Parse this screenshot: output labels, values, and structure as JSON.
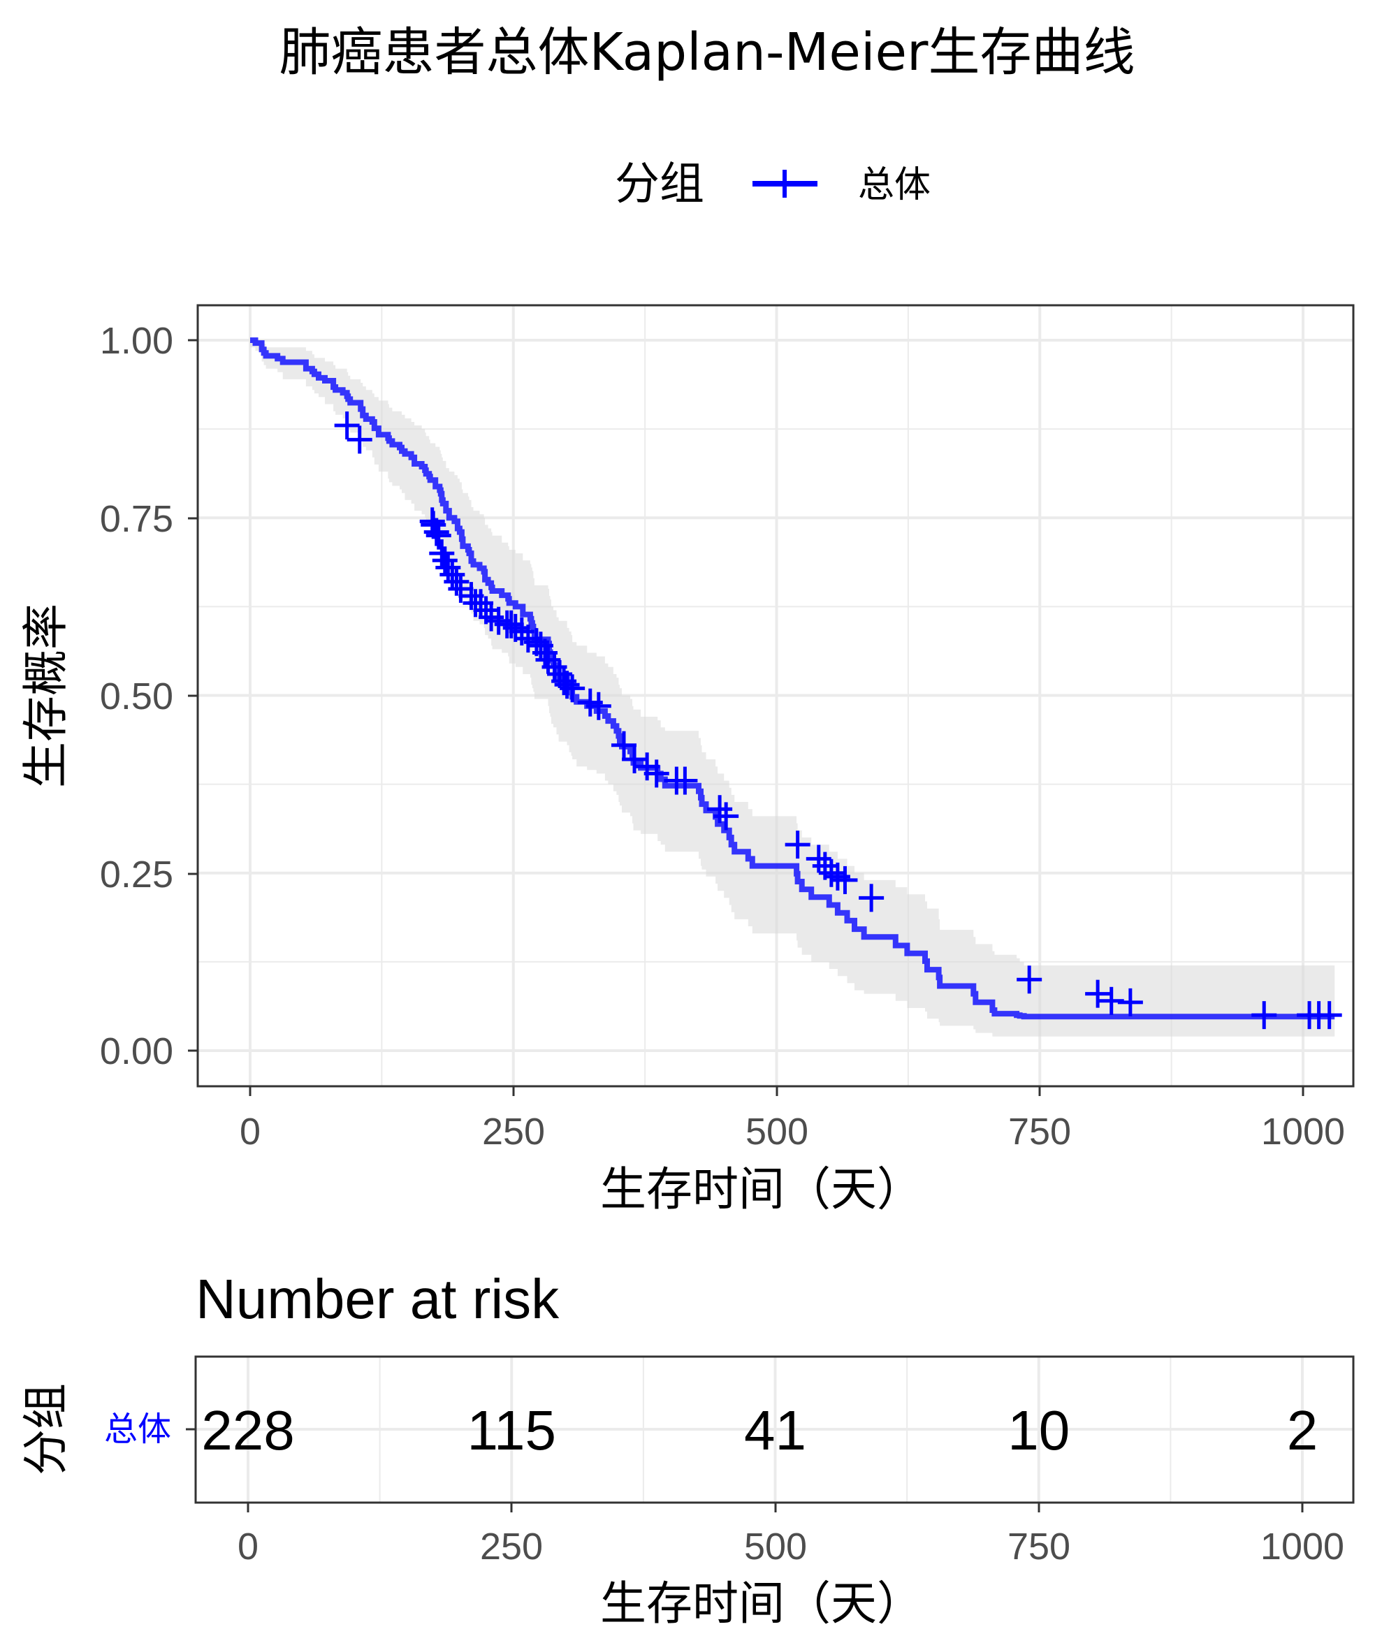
{
  "chart_data": [
    {
      "type": "line",
      "subtype": "kaplan-meier",
      "title": "肺癌患者总体Kaplan-Meier生存曲线",
      "legend": {
        "title": "分组",
        "position": "top",
        "entries": [
          "总体"
        ]
      },
      "xlabel": "生存时间（天）",
      "ylabel": "生存概率",
      "xlim": [
        -50,
        1045
      ],
      "ylim": [
        -0.05,
        1.05
      ],
      "xticks": [
        "0",
        "250",
        "500",
        "750",
        "1000"
      ],
      "yticks": [
        "0.00",
        "0.25",
        "0.50",
        "0.75",
        "1.00"
      ],
      "grid": true,
      "confidence_band": true,
      "series": [
        {
          "name": "总体",
          "color": "#0000ff",
          "x": [
            0,
            5,
            11,
            13,
            15,
            26,
            31,
            53,
            59,
            61,
            65,
            71,
            79,
            81,
            88,
            92,
            93,
            95,
            105,
            107,
            110,
            116,
            118,
            122,
            131,
            132,
            135,
            142,
            144,
            147,
            153,
            156,
            163,
            166,
            167,
            170,
            171,
            176,
            180,
            181,
            182,
            183,
            186,
            189,
            194,
            197,
            199,
            201,
            202,
            207,
            208,
            210,
            212,
            218,
            222,
            223,
            226,
            229,
            230,
            239,
            245,
            246,
            252,
            259,
            266,
            267,
            268,
            269,
            270,
            283,
            284,
            285,
            286,
            288,
            291,
            293,
            301,
            303,
            305,
            306,
            310,
            320,
            329,
            337,
            340,
            345,
            348,
            350,
            351,
            353,
            361,
            363,
            364,
            371,
            387,
            390,
            394,
            426,
            428,
            429,
            433,
            442,
            444,
            450,
            455,
            457,
            460,
            473,
            477,
            519,
            520,
            524,
            533,
            550,
            558,
            567,
            574,
            583,
            613,
            624,
            641,
            643,
            654,
            655,
            687,
            689,
            705,
            707,
            728,
            731,
            735,
            765,
            791,
            814,
            883
          ],
          "y": [
            1.0,
            0.996,
            0.987,
            0.982,
            0.978,
            0.974,
            0.969,
            0.96,
            0.956,
            0.952,
            0.947,
            0.943,
            0.934,
            0.93,
            0.926,
            0.921,
            0.917,
            0.912,
            0.903,
            0.894,
            0.889,
            0.885,
            0.876,
            0.867,
            0.862,
            0.858,
            0.853,
            0.849,
            0.844,
            0.84,
            0.835,
            0.826,
            0.822,
            0.817,
            0.812,
            0.808,
            0.803,
            0.794,
            0.789,
            0.784,
            0.775,
            0.77,
            0.76,
            0.75,
            0.745,
            0.735,
            0.73,
            0.72,
            0.71,
            0.705,
            0.7,
            0.689,
            0.684,
            0.679,
            0.674,
            0.663,
            0.658,
            0.652,
            0.647,
            0.641,
            0.636,
            0.63,
            0.625,
            0.614,
            0.608,
            0.602,
            0.597,
            0.591,
            0.579,
            0.573,
            0.561,
            0.555,
            0.549,
            0.543,
            0.536,
            0.524,
            0.517,
            0.511,
            0.504,
            0.498,
            0.491,
            0.485,
            0.478,
            0.471,
            0.464,
            0.457,
            0.45,
            0.443,
            0.436,
            0.428,
            0.421,
            0.413,
            0.405,
            0.398,
            0.39,
            0.382,
            0.373,
            0.365,
            0.356,
            0.347,
            0.338,
            0.329,
            0.319,
            0.31,
            0.3,
            0.29,
            0.28,
            0.27,
            0.26,
            0.249,
            0.238,
            0.227,
            0.216,
            0.205,
            0.194,
            0.183,
            0.171,
            0.16,
            0.148,
            0.137,
            0.126,
            0.114,
            0.103,
            0.091,
            0.08,
            0.068,
            0.057,
            0.052,
            0.05,
            0.049,
            0.048,
            0.048,
            0.048,
            0.048,
            0.048
          ],
          "censored_x": [
            92,
            104,
            173,
            174,
            177,
            179,
            182,
            185,
            188,
            192,
            196,
            200,
            210,
            214,
            219,
            224,
            229,
            236,
            244,
            248,
            252,
            258,
            264,
            272,
            276,
            280,
            283,
            289,
            294,
            298,
            301,
            306,
            323,
            331,
            355,
            365,
            377,
            386,
            405,
            413,
            446,
            452,
            520,
            540,
            546,
            552,
            558,
            565,
            590,
            740,
            805,
            818,
            836,
            963,
            1006,
            1015,
            1025
          ],
          "censored_y": [
            0.88,
            0.86,
            0.745,
            0.74,
            0.73,
            0.725,
            0.7,
            0.69,
            0.68,
            0.67,
            0.66,
            0.65,
            0.64,
            0.63,
            0.63,
            0.62,
            0.61,
            0.605,
            0.6,
            0.6,
            0.595,
            0.59,
            0.58,
            0.575,
            0.57,
            0.56,
            0.55,
            0.54,
            0.53,
            0.52,
            0.515,
            0.51,
            0.49,
            0.485,
            0.43,
            0.41,
            0.4,
            0.39,
            0.38,
            0.38,
            0.34,
            0.33,
            0.29,
            0.27,
            0.26,
            0.25,
            0.245,
            0.24,
            0.215,
            0.1,
            0.08,
            0.07,
            0.068,
            0.05,
            0.05,
            0.05,
            0.05
          ]
        }
      ],
      "ci_lower": [
        0.99,
        0.985,
        0.97,
        0.965,
        0.96,
        0.955,
        0.945,
        0.935,
        0.93,
        0.925,
        0.92,
        0.91,
        0.9,
        0.895,
        0.89,
        0.885,
        0.875,
        0.87,
        0.86,
        0.85,
        0.845,
        0.835,
        0.825,
        0.815,
        0.805,
        0.8,
        0.795,
        0.79,
        0.785,
        0.775,
        0.77,
        0.76,
        0.755,
        0.75,
        0.745,
        0.74,
        0.735,
        0.725,
        0.72,
        0.715,
        0.705,
        0.7,
        0.69,
        0.675,
        0.67,
        0.66,
        0.655,
        0.645,
        0.635,
        0.63,
        0.625,
        0.615,
        0.605,
        0.6,
        0.595,
        0.585,
        0.58,
        0.57,
        0.565,
        0.56,
        0.555,
        0.545,
        0.54,
        0.53,
        0.525,
        0.515,
        0.51,
        0.505,
        0.495,
        0.485,
        0.475,
        0.47,
        0.46,
        0.455,
        0.445,
        0.435,
        0.43,
        0.42,
        0.415,
        0.41,
        0.4,
        0.395,
        0.39,
        0.38,
        0.375,
        0.365,
        0.36,
        0.35,
        0.345,
        0.335,
        0.33,
        0.32,
        0.31,
        0.305,
        0.295,
        0.29,
        0.28,
        0.27,
        0.26,
        0.255,
        0.245,
        0.235,
        0.225,
        0.215,
        0.205,
        0.195,
        0.185,
        0.175,
        0.165,
        0.155,
        0.145,
        0.135,
        0.125,
        0.115,
        0.105,
        0.095,
        0.085,
        0.08,
        0.07,
        0.06,
        0.055,
        0.045,
        0.04,
        0.035,
        0.03,
        0.025,
        0.02,
        0.02,
        0.02,
        0.02,
        0.02,
        0.02,
        0.02,
        0.02,
        0.02
      ],
      "ci_upper": [
        1.0,
        1.0,
        1.0,
        0.995,
        0.99,
        0.99,
        0.99,
        0.985,
        0.98,
        0.975,
        0.975,
        0.97,
        0.965,
        0.96,
        0.96,
        0.955,
        0.95,
        0.945,
        0.94,
        0.935,
        0.93,
        0.925,
        0.92,
        0.915,
        0.91,
        0.905,
        0.9,
        0.9,
        0.895,
        0.89,
        0.885,
        0.88,
        0.875,
        0.87,
        0.865,
        0.86,
        0.855,
        0.85,
        0.845,
        0.84,
        0.835,
        0.83,
        0.82,
        0.815,
        0.81,
        0.805,
        0.8,
        0.79,
        0.785,
        0.78,
        0.775,
        0.765,
        0.76,
        0.755,
        0.75,
        0.74,
        0.735,
        0.73,
        0.725,
        0.715,
        0.71,
        0.705,
        0.7,
        0.69,
        0.685,
        0.68,
        0.675,
        0.665,
        0.655,
        0.65,
        0.64,
        0.635,
        0.625,
        0.62,
        0.61,
        0.605,
        0.595,
        0.59,
        0.585,
        0.575,
        0.57,
        0.56,
        0.555,
        0.545,
        0.54,
        0.53,
        0.525,
        0.515,
        0.51,
        0.5,
        0.495,
        0.485,
        0.48,
        0.47,
        0.465,
        0.455,
        0.45,
        0.44,
        0.43,
        0.42,
        0.41,
        0.4,
        0.39,
        0.38,
        0.37,
        0.36,
        0.35,
        0.34,
        0.33,
        0.32,
        0.31,
        0.3,
        0.29,
        0.28,
        0.27,
        0.26,
        0.25,
        0.24,
        0.23,
        0.22,
        0.21,
        0.2,
        0.185,
        0.17,
        0.16,
        0.15,
        0.14,
        0.135,
        0.13,
        0.125,
        0.12,
        0.12,
        0.12,
        0.12,
        0.12
      ]
    },
    {
      "type": "table",
      "title": "Number at risk",
      "xlabel": "生存时间（天）",
      "ylabel": "分组",
      "xticks": [
        "0",
        "250",
        "500",
        "750",
        "1000"
      ],
      "rows": [
        {
          "name": "总体",
          "color": "#0000ff",
          "x": [
            0,
            250,
            500,
            750,
            1000
          ],
          "values": [
            "228",
            "115",
            "41",
            "10",
            "2"
          ]
        }
      ]
    }
  ]
}
